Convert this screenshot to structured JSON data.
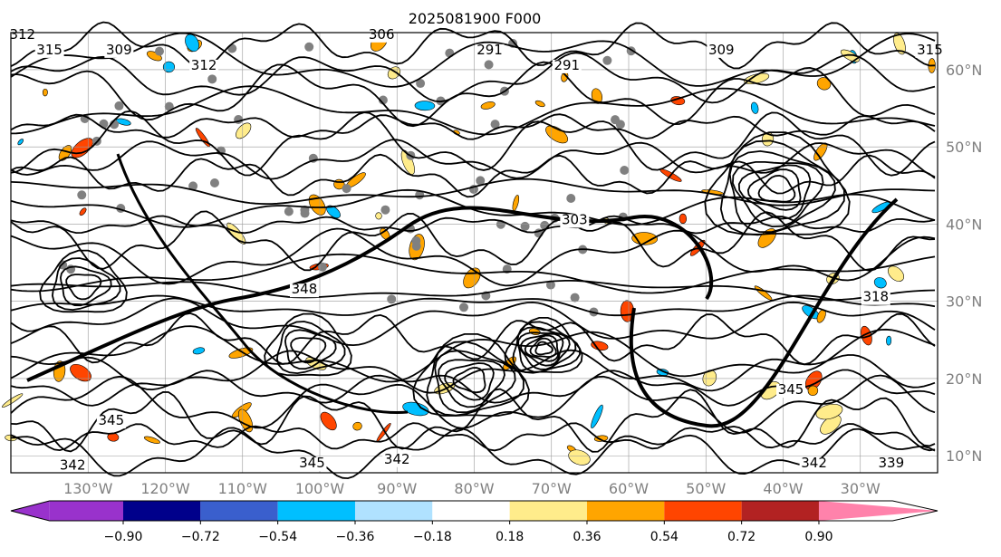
{
  "chart_data": {
    "type": "heatmap",
    "title": "2025081900 F000",
    "projection": "map",
    "lon_range": [
      -140,
      -20
    ],
    "lat_range": [
      7.8,
      64.8
    ],
    "lon_ticks": [
      {
        "value": -130,
        "label": "130°W"
      },
      {
        "value": -120,
        "label": "120°W"
      },
      {
        "value": -110,
        "label": "110°W"
      },
      {
        "value": -100,
        "label": "100°W"
      },
      {
        "value": -90,
        "label": "90°W"
      },
      {
        "value": -80,
        "label": "80°W"
      },
      {
        "value": -70,
        "label": "70°W"
      },
      {
        "value": -60,
        "label": "60°W"
      },
      {
        "value": -50,
        "label": "50°W"
      },
      {
        "value": -40,
        "label": "40°W"
      },
      {
        "value": -30,
        "label": "30°W"
      }
    ],
    "lat_ticks": [
      {
        "value": 60,
        "label": "60°N"
      },
      {
        "value": 50,
        "label": "50°N"
      },
      {
        "value": 40,
        "label": "40°N"
      },
      {
        "value": 30,
        "label": "30°N"
      },
      {
        "value": 20,
        "label": "20°N"
      },
      {
        "value": 10,
        "label": "10°N"
      }
    ],
    "grid": true,
    "colorbar": {
      "orientation": "horizontal",
      "placement": "bottom",
      "extend": "both",
      "bounds": [
        -0.9,
        -0.72,
        -0.54,
        -0.36,
        -0.18,
        0.18,
        0.36,
        0.54,
        0.72,
        0.9
      ],
      "tick_labels": [
        "−0.90",
        "−0.72",
        "−0.54",
        "−0.36",
        "−0.18",
        "0.18",
        "0.36",
        "0.54",
        "0.72",
        "0.90"
      ],
      "colors": [
        "#9932cc",
        "#00008b",
        "#3a5fcd",
        "#00bfff",
        "#b0e2ff",
        "#ffffff",
        "#ffec8b",
        "#ffa500",
        "#ff4500",
        "#b22222",
        "#ff82ab"
      ]
    },
    "contour_labels": [
      {
        "text": "312",
        "lon": -138.5,
        "lat": 64
      },
      {
        "text": "315",
        "lon": -135,
        "lat": 62
      },
      {
        "text": "309",
        "lon": -126,
        "lat": 62
      },
      {
        "text": "312",
        "lon": -115,
        "lat": 60
      },
      {
        "text": "306",
        "lon": -92,
        "lat": 64
      },
      {
        "text": "291",
        "lon": -78,
        "lat": 62
      },
      {
        "text": "291",
        "lon": -68,
        "lat": 60
      },
      {
        "text": "309",
        "lon": -48,
        "lat": 62
      },
      {
        "text": "315",
        "lon": -21,
        "lat": 62
      },
      {
        "text": "303",
        "lon": -67,
        "lat": 40
      },
      {
        "text": "348",
        "lon": -102,
        "lat": 31
      },
      {
        "text": "318",
        "lon": -28,
        "lat": 30
      },
      {
        "text": "345",
        "lon": -127,
        "lat": 14
      },
      {
        "text": "345",
        "lon": -39,
        "lat": 18
      },
      {
        "text": "342",
        "lon": -90,
        "lat": 9
      },
      {
        "text": "345",
        "lon": -101,
        "lat": 8.5
      },
      {
        "text": "342",
        "lon": -132,
        "lat": 8.2
      },
      {
        "text": "342",
        "lon": -36,
        "lat": 8.5
      },
      {
        "text": "339",
        "lon": -26,
        "lat": 8.5
      }
    ]
  }
}
